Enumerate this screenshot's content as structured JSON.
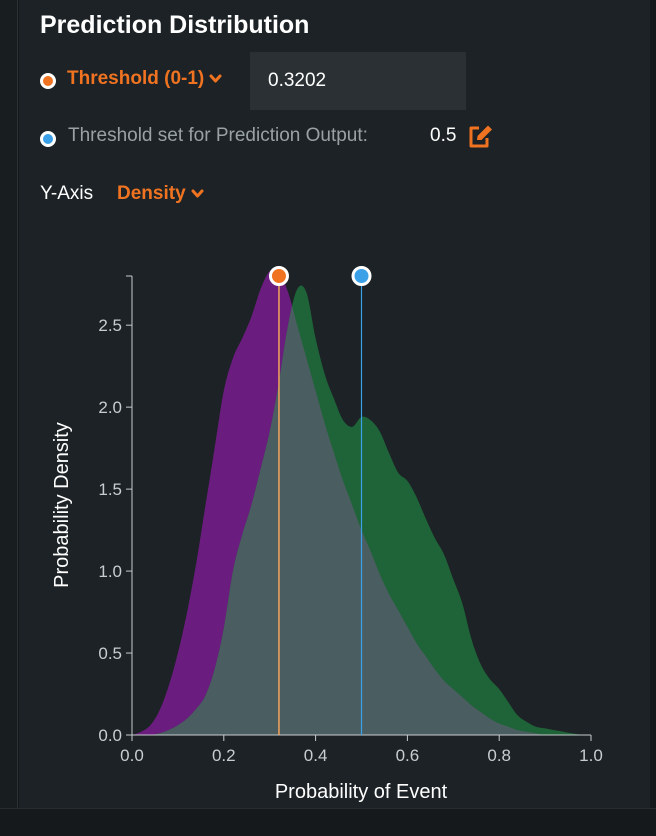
{
  "header": {
    "title": "Prediction Distribution"
  },
  "threshold": {
    "label": "Threshold (0-1)",
    "value": "0.3202",
    "dot_color": "#f07321"
  },
  "output_threshold": {
    "label": "Threshold set for Prediction Output:",
    "value": "0.5",
    "dot_color": "#3aa0e8"
  },
  "y_axis_control": {
    "label": "Y-Axis",
    "selected": "Density"
  },
  "colors": {
    "accent": "#f07321",
    "class_a": "#6a1d7e",
    "class_b": "#1f6338",
    "overlap": "#4a5d60",
    "output_line": "#3aa0e8"
  },
  "chart_data": {
    "type": "area",
    "xlabel": "Probability of Event",
    "ylabel": "Probability Density",
    "xlim": [
      0,
      1
    ],
    "ylim": [
      0,
      2.8
    ],
    "xticks": [
      "0.0",
      "0.2",
      "0.4",
      "0.6",
      "0.8",
      "1.0"
    ],
    "yticks": [
      "0.0",
      "0.5",
      "1.0",
      "1.5",
      "2.0",
      "2.5"
    ],
    "threshold": 0.3202,
    "output_threshold": 0.5,
    "series": [
      {
        "color": "#6a1d7e",
        "x": [
          0.0,
          0.02,
          0.04,
          0.06,
          0.08,
          0.1,
          0.12,
          0.14,
          0.16,
          0.18,
          0.2,
          0.22,
          0.24,
          0.26,
          0.28,
          0.3,
          0.32,
          0.34,
          0.36,
          0.38,
          0.4,
          0.42,
          0.44,
          0.46,
          0.48,
          0.5,
          0.52,
          0.54,
          0.56,
          0.58,
          0.6,
          0.62,
          0.64,
          0.66,
          0.68,
          0.7,
          0.72,
          0.74,
          0.76,
          0.78,
          0.8,
          0.82,
          0.84,
          0.86,
          0.88,
          0.9,
          0.92,
          0.94,
          0.96,
          0.98,
          1.0
        ],
        "values": [
          0.0,
          0.02,
          0.06,
          0.15,
          0.3,
          0.5,
          0.75,
          1.05,
          1.4,
          1.75,
          2.1,
          2.3,
          2.42,
          2.55,
          2.72,
          2.83,
          2.83,
          2.7,
          2.5,
          2.3,
          2.1,
          1.9,
          1.72,
          1.55,
          1.4,
          1.25,
          1.12,
          0.98,
          0.86,
          0.76,
          0.66,
          0.56,
          0.48,
          0.4,
          0.33,
          0.28,
          0.23,
          0.18,
          0.14,
          0.1,
          0.07,
          0.05,
          0.03,
          0.02,
          0.01,
          0.0,
          0.0,
          0.0,
          0.0,
          0.0,
          0.0
        ]
      },
      {
        "color": "#1f6338",
        "x": [
          0.0,
          0.02,
          0.04,
          0.06,
          0.08,
          0.1,
          0.12,
          0.14,
          0.16,
          0.18,
          0.2,
          0.22,
          0.24,
          0.26,
          0.28,
          0.3,
          0.32,
          0.34,
          0.36,
          0.38,
          0.4,
          0.42,
          0.44,
          0.46,
          0.48,
          0.5,
          0.52,
          0.54,
          0.56,
          0.58,
          0.6,
          0.62,
          0.64,
          0.66,
          0.68,
          0.7,
          0.72,
          0.74,
          0.76,
          0.78,
          0.8,
          0.82,
          0.84,
          0.86,
          0.88,
          0.9,
          0.92,
          0.94,
          0.96,
          0.98,
          1.0
        ],
        "values": [
          0.0,
          0.0,
          0.0,
          0.01,
          0.03,
          0.06,
          0.1,
          0.16,
          0.24,
          0.4,
          0.65,
          1.0,
          1.22,
          1.4,
          1.62,
          1.85,
          2.15,
          2.5,
          2.72,
          2.7,
          2.42,
          2.2,
          2.05,
          1.92,
          1.88,
          1.94,
          1.92,
          1.85,
          1.72,
          1.6,
          1.55,
          1.45,
          1.32,
          1.2,
          1.1,
          0.95,
          0.8,
          0.58,
          0.43,
          0.34,
          0.28,
          0.2,
          0.12,
          0.08,
          0.05,
          0.04,
          0.03,
          0.02,
          0.01,
          0.0,
          0.0
        ]
      }
    ]
  }
}
